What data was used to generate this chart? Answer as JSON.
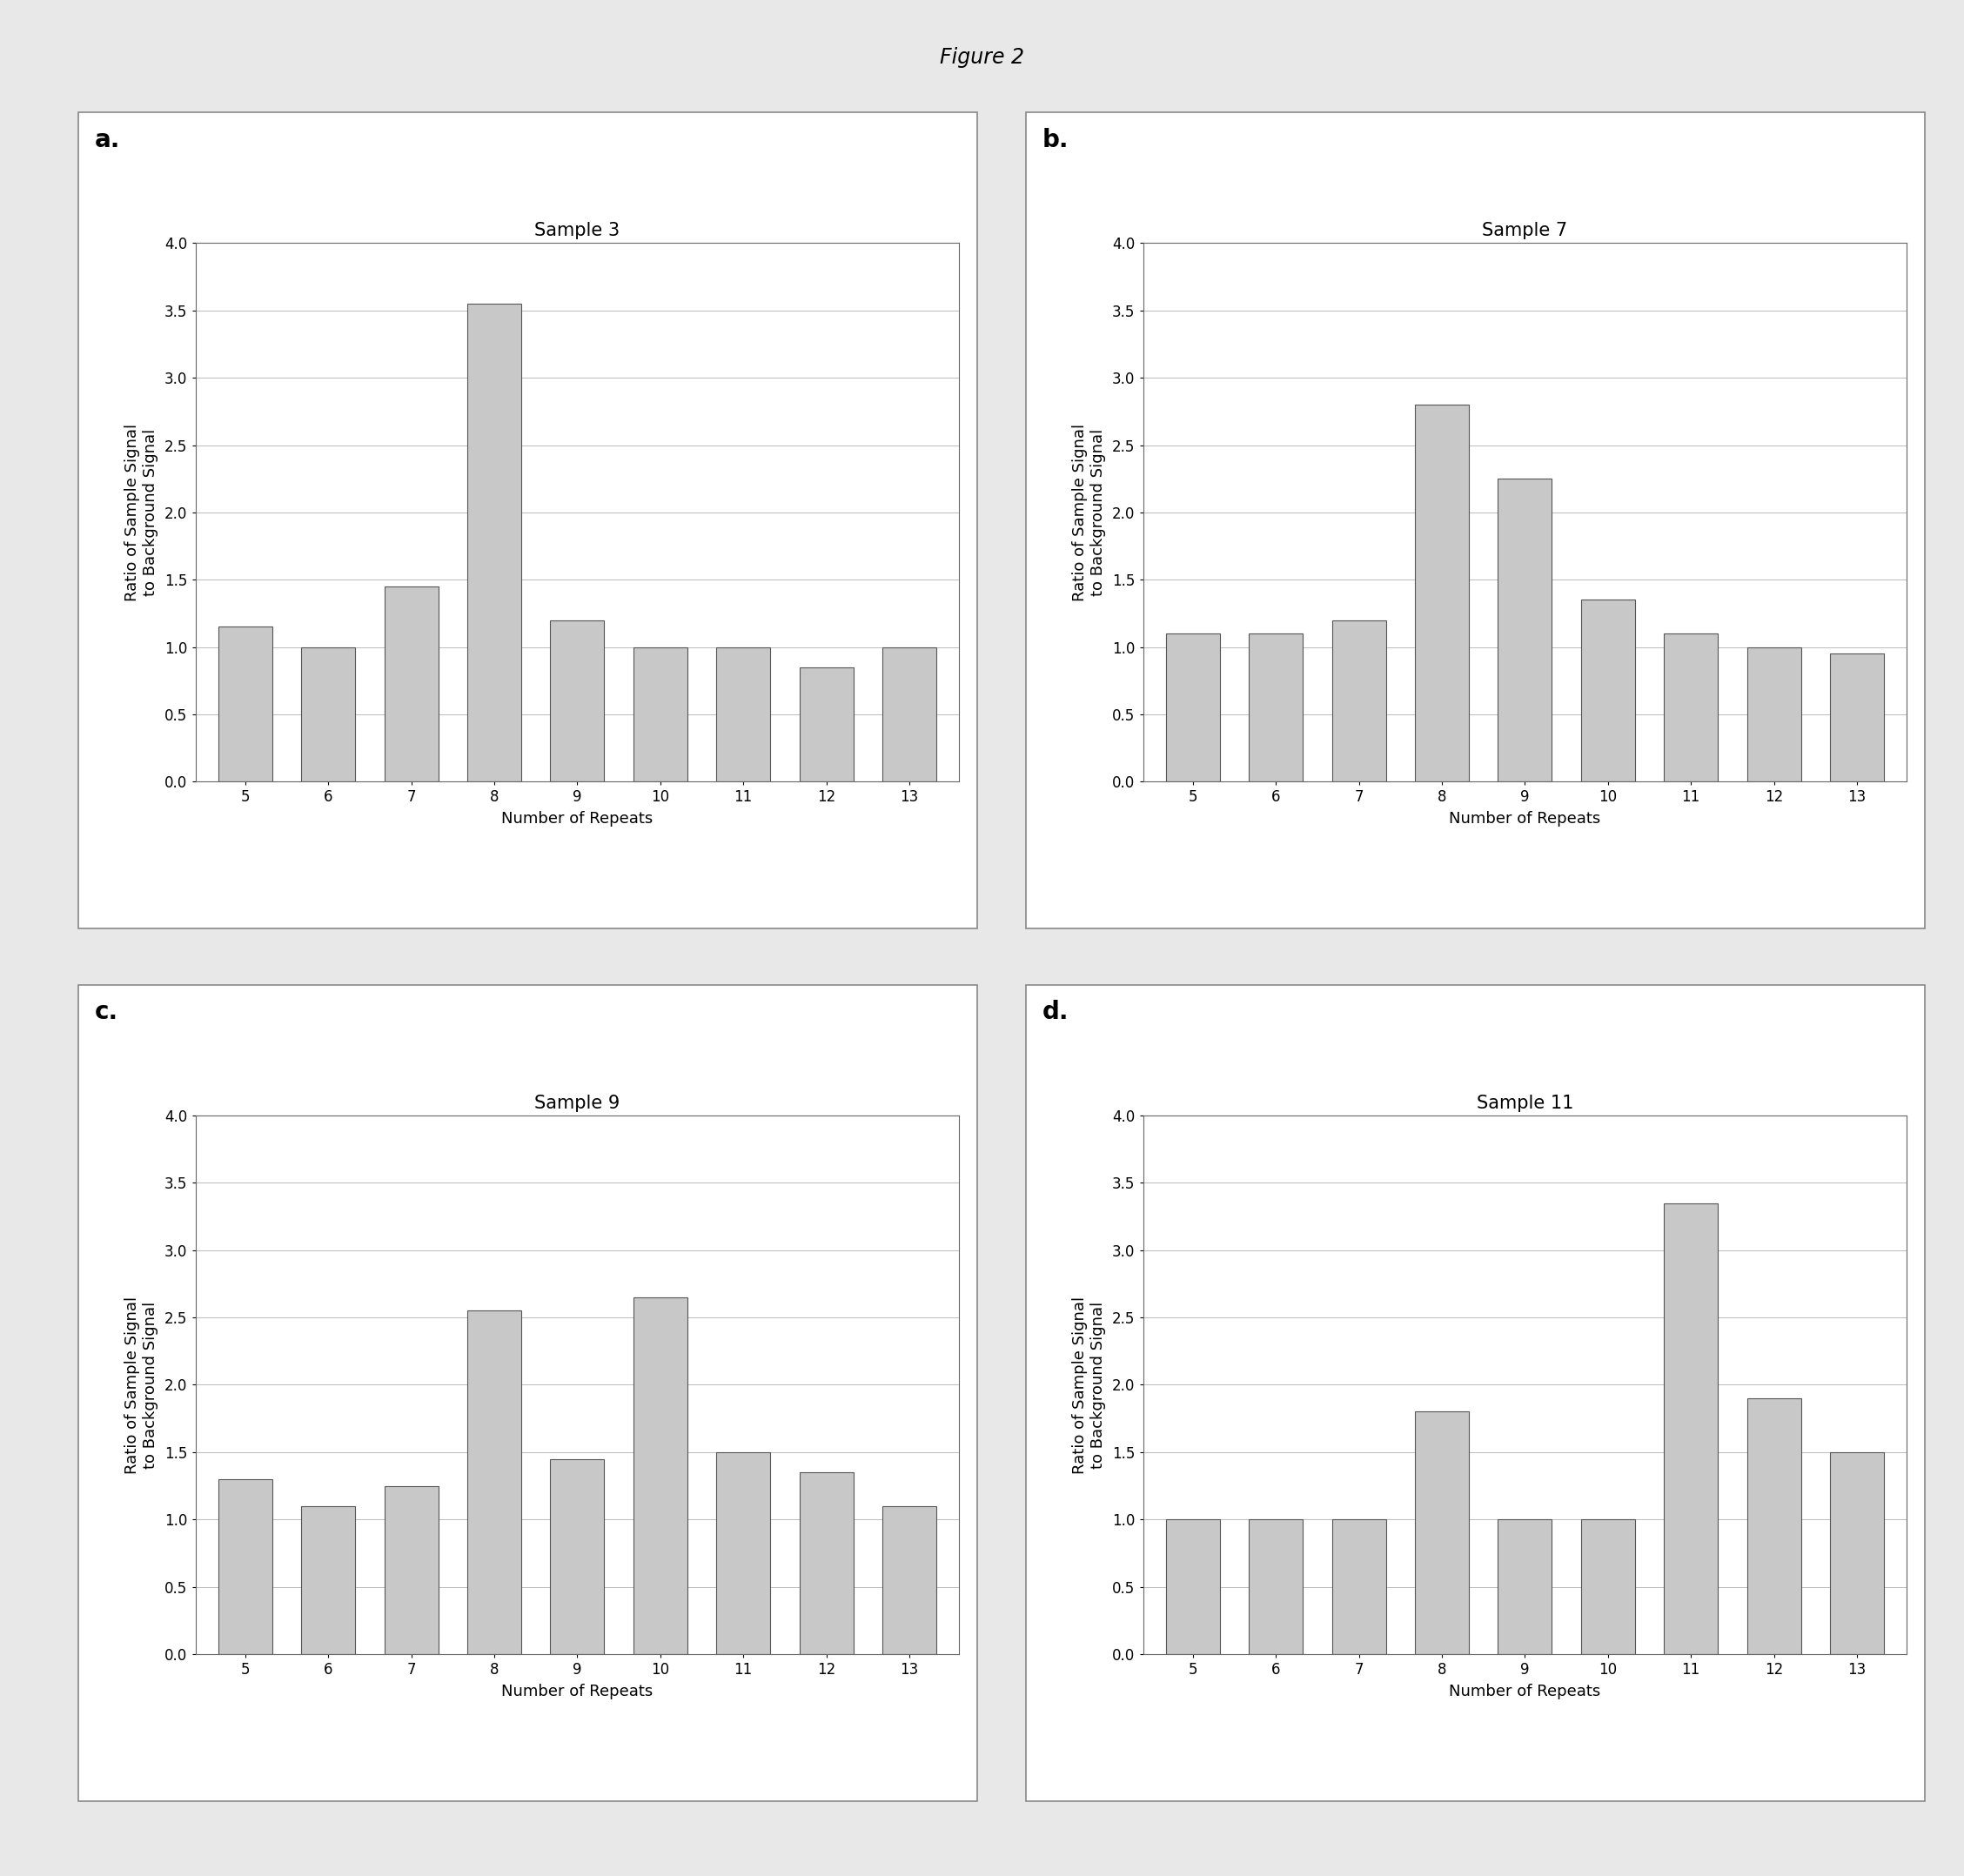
{
  "figure_title": "Figure 2",
  "subplots": [
    {
      "label": "a.",
      "title": "Sample 3",
      "x_categories": [
        5,
        6,
        7,
        8,
        9,
        10,
        11,
        12,
        13
      ],
      "values": [
        1.15,
        1.0,
        1.45,
        3.55,
        1.2,
        1.0,
        1.0,
        0.85,
        1.0
      ],
      "ylim": [
        0,
        4.0
      ],
      "yticks": [
        0.0,
        0.5,
        1.0,
        1.5,
        2.0,
        2.5,
        3.0,
        3.5,
        4.0
      ]
    },
    {
      "label": "b.",
      "title": "Sample 7",
      "x_categories": [
        5,
        6,
        7,
        8,
        9,
        10,
        11,
        12,
        13
      ],
      "values": [
        1.1,
        1.1,
        1.2,
        2.8,
        2.25,
        1.35,
        1.1,
        1.0,
        0.95
      ],
      "ylim": [
        0,
        4.0
      ],
      "yticks": [
        0.0,
        0.5,
        1.0,
        1.5,
        2.0,
        2.5,
        3.0,
        3.5,
        4.0
      ]
    },
    {
      "label": "c.",
      "title": "Sample 9",
      "x_categories": [
        5,
        6,
        7,
        8,
        9,
        10,
        11,
        12,
        13
      ],
      "values": [
        1.3,
        1.1,
        1.25,
        2.55,
        1.45,
        2.65,
        1.5,
        1.35,
        1.1
      ],
      "ylim": [
        0,
        4.0
      ],
      "yticks": [
        0.0,
        0.5,
        1.0,
        1.5,
        2.0,
        2.5,
        3.0,
        3.5,
        4.0
      ]
    },
    {
      "label": "d.",
      "title": "Sample 11",
      "x_categories": [
        5,
        6,
        7,
        8,
        9,
        10,
        11,
        12,
        13
      ],
      "values": [
        1.0,
        1.0,
        1.0,
        1.8,
        1.0,
        1.0,
        3.35,
        1.9,
        1.5
      ],
      "ylim": [
        0,
        4.0
      ],
      "yticks": [
        0.0,
        0.5,
        1.0,
        1.5,
        2.0,
        2.5,
        3.0,
        3.5,
        4.0
      ]
    }
  ],
  "ylabel": "Ratio of Sample Signal\nto Background Signal",
  "xlabel": "Number of Repeats",
  "bar_color": "#c8c8c8",
  "bar_edgecolor": "#555555",
  "background_color": "#e8e8e8",
  "panel_background": "#ffffff",
  "figure_title_fontsize": 17,
  "subplot_title_fontsize": 15,
  "panel_label_fontsize": 20,
  "axis_label_fontsize": 13,
  "tick_fontsize": 12,
  "grid_color": "#aaaaaa",
  "outer_box_color": "#888888"
}
